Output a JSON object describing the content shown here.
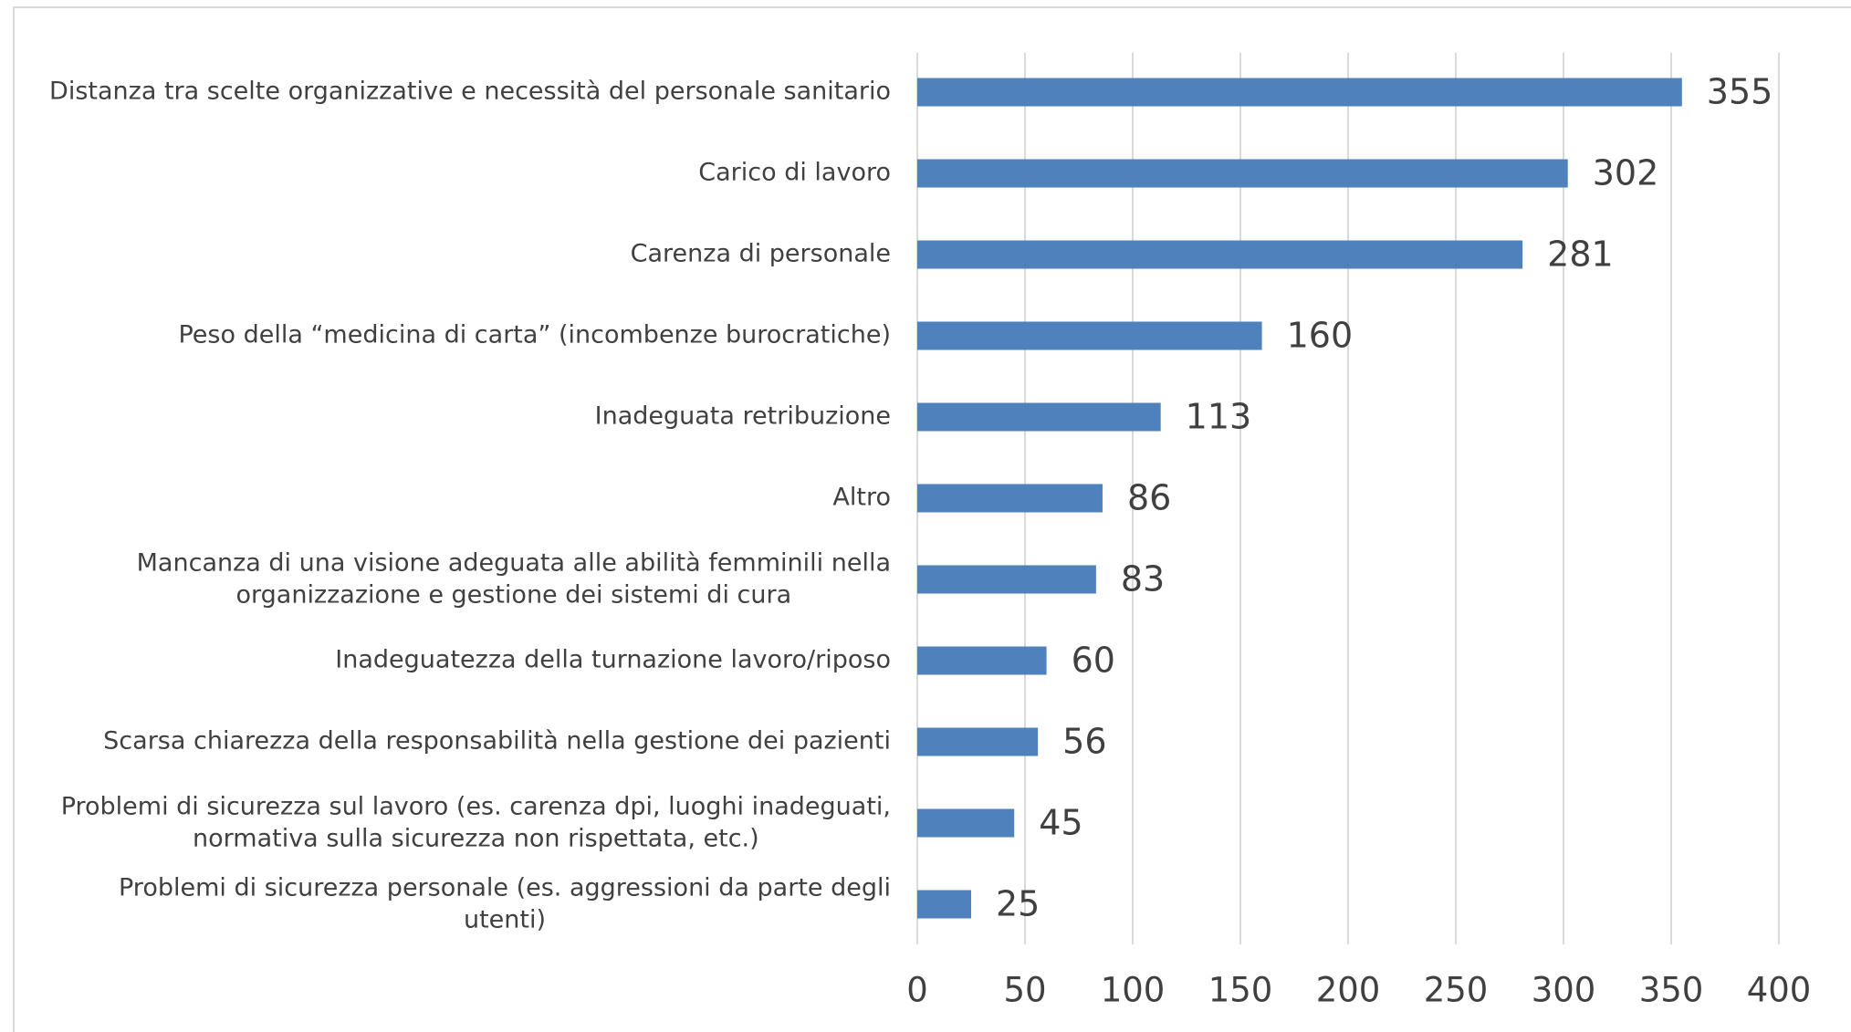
{
  "chart_data": {
    "type": "bar",
    "orientation": "horizontal",
    "categories": [
      "Distanza tra scelte organizzative e necessità del personale sanitario",
      "Carico di lavoro",
      "Carenza di personale",
      "Peso della “medicina di carta” (incombenze burocratiche)",
      "Inadeguata retribuzione",
      "Altro",
      "Mancanza di una visione adeguata alle abilità femminili nella\norganizzazione e gestione dei sistemi di cura",
      "Inadeguatezza della turnazione lavoro/riposo",
      "Scarsa chiarezza della responsabilità nella gestione dei pazienti",
      "Problemi di sicurezza sul lavoro (es. carenza dpi, luoghi inadeguati,\nnormativa sulla sicurezza non rispettata, etc.)",
      "Problemi di sicurezza personale (es. aggressioni da parte degli\nutenti)"
    ],
    "values": [
      355,
      302,
      281,
      160,
      113,
      86,
      83,
      60,
      56,
      45,
      25
    ],
    "color": "#4f81bd",
    "xlim": [
      0,
      400
    ],
    "xticks": [
      0,
      50,
      100,
      150,
      200,
      250,
      300,
      350,
      400
    ],
    "grid": true
  }
}
